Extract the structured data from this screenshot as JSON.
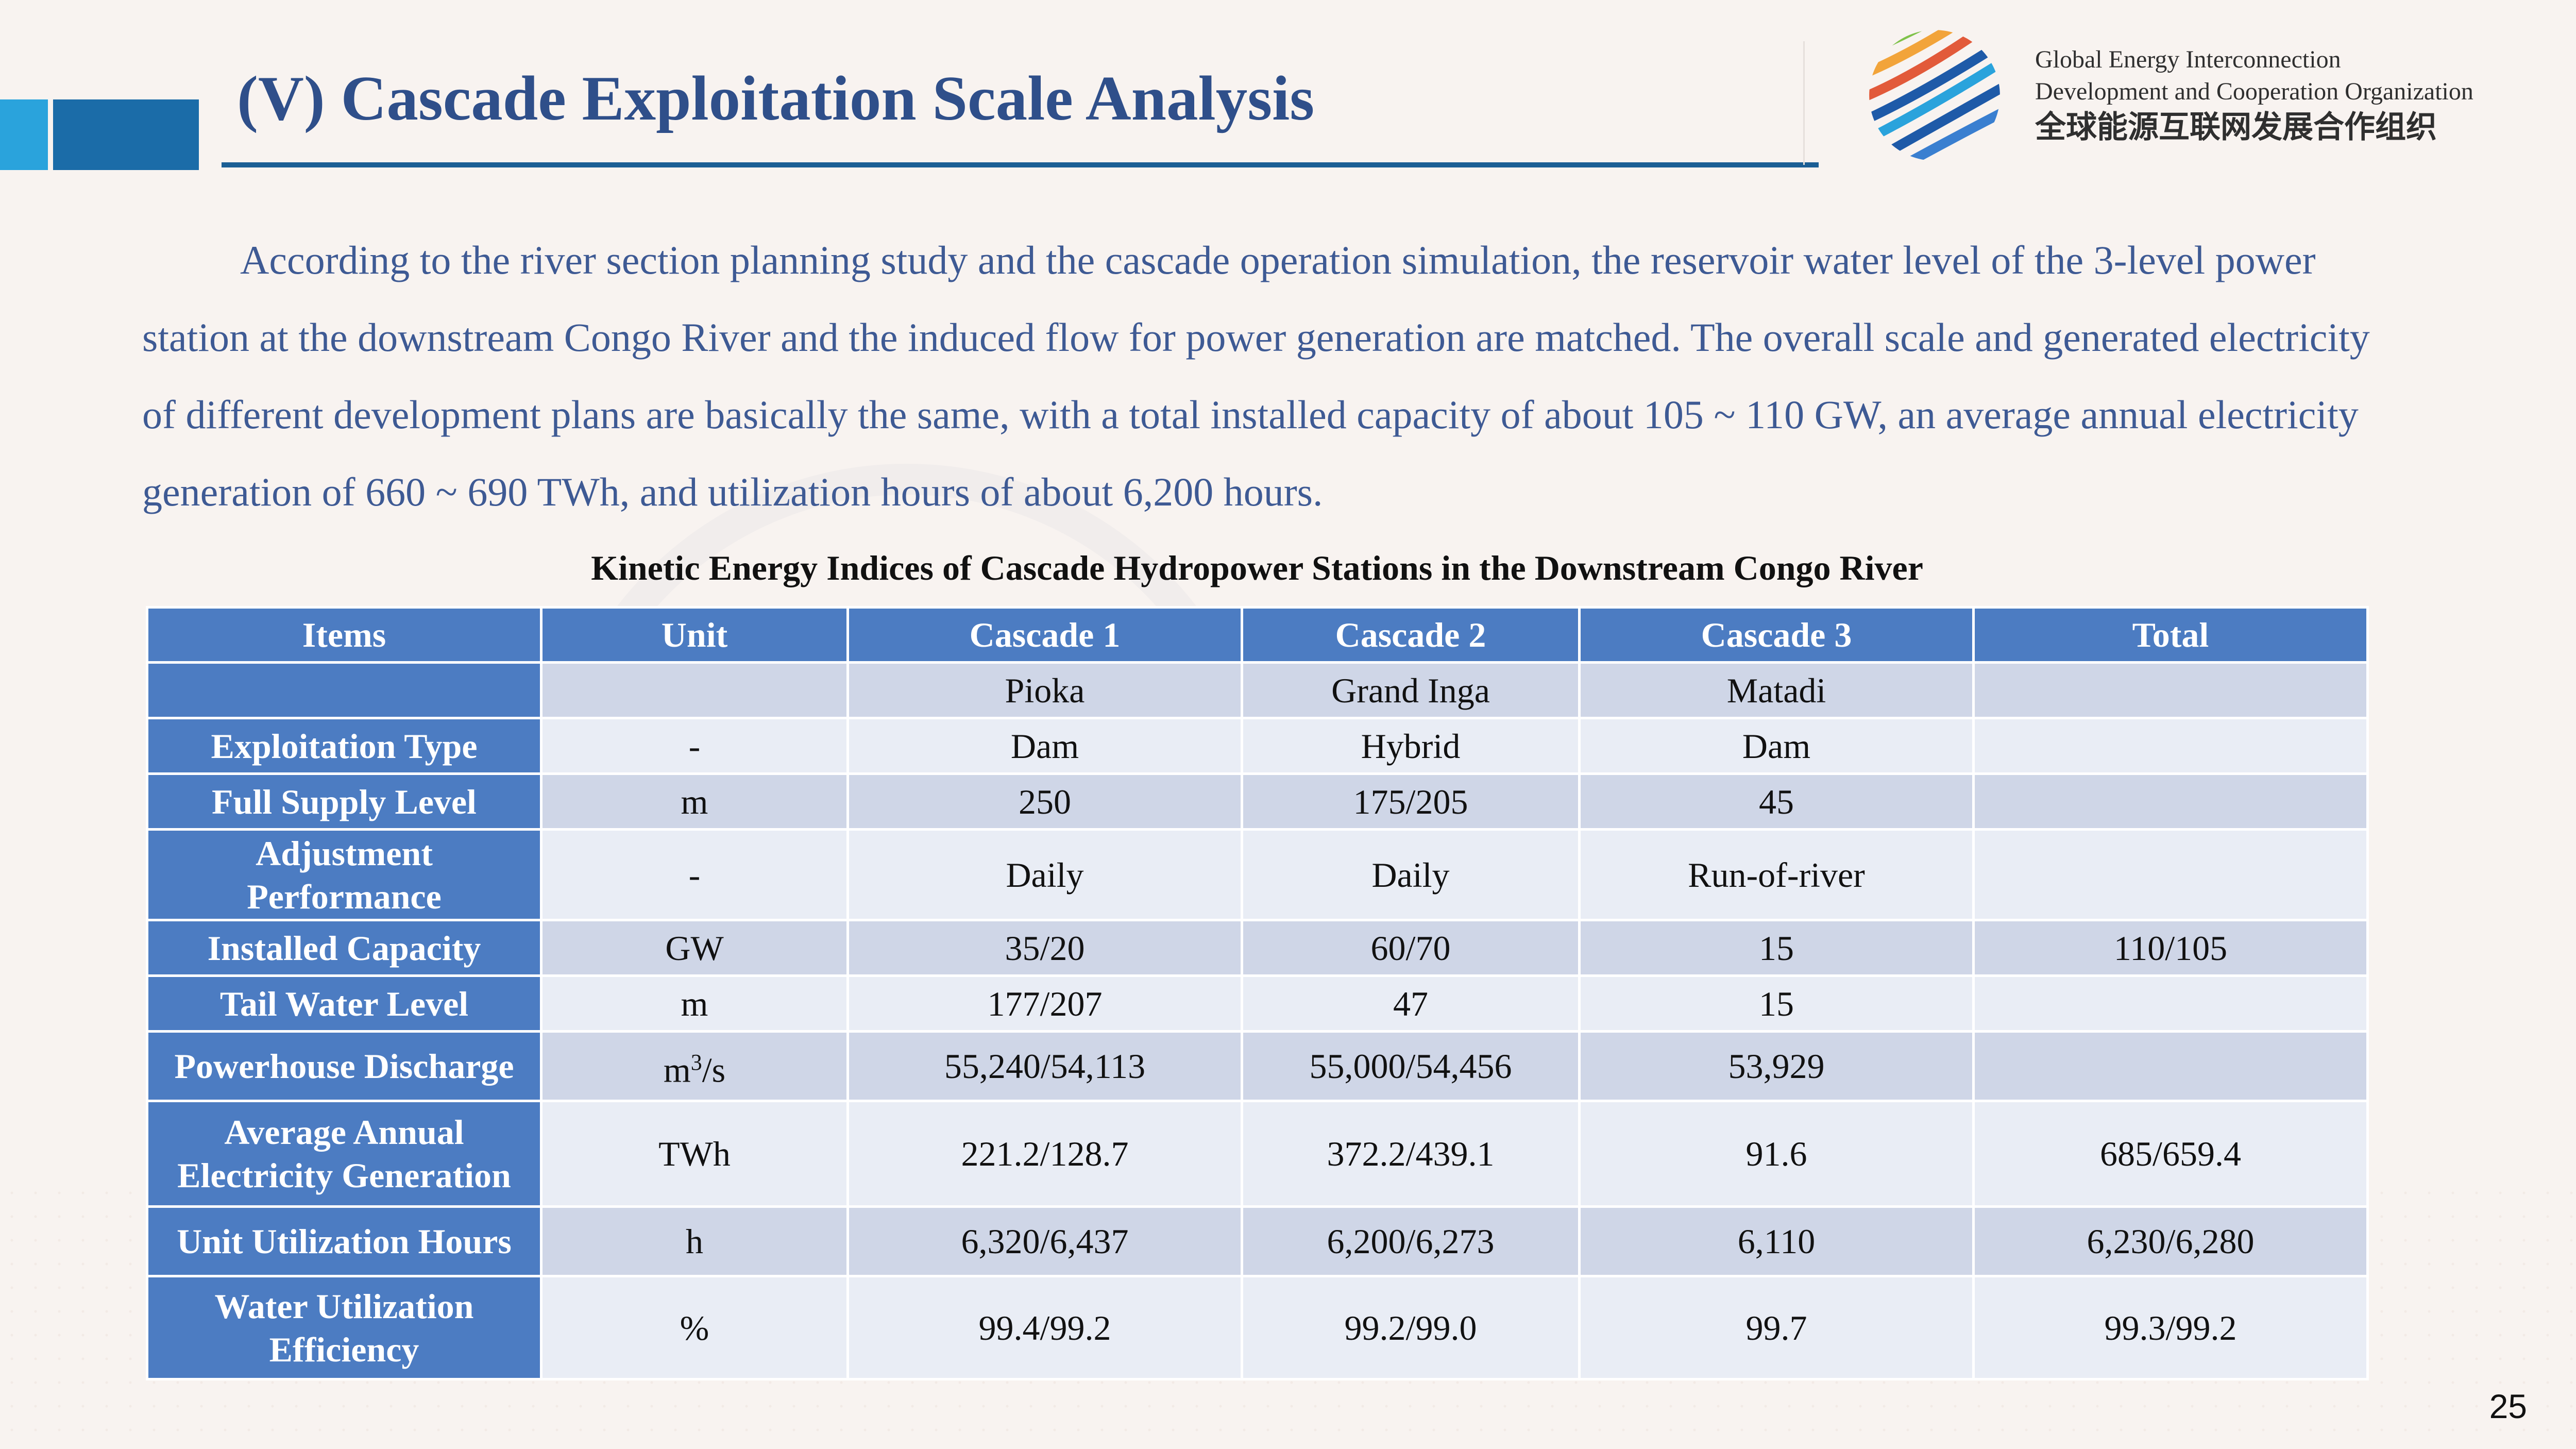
{
  "header": {
    "title": "(V) Cascade Exploitation Scale Analysis",
    "org_line1": "Global Energy Interconnection",
    "org_line2": "Development and Cooperation Organization",
    "org_line3": "全球能源互联网发展合作组织"
  },
  "body": {
    "paragraph": "According to the river section planning study and the cascade operation simulation, the reservoir water level of the 3-level power station at the downstream Congo River and the induced flow for power generation are matched. The overall scale and generated electricity of different development plans are basically the same, with a total installed capacity of about 105 ~ 110 GW, an average annual electricity generation of 660 ~ 690 TWh, and utilization hours of about 6,200 hours."
  },
  "table": {
    "caption": "Kinetic Energy Indices of Cascade Hydropower Stations in the Downstream Congo River",
    "headers": [
      "Items",
      "Unit",
      "Cascade 1",
      "Cascade 2",
      "Cascade 3",
      "Total"
    ],
    "rows": [
      {
        "item": "",
        "unit": "",
        "c1": "Pioka",
        "c2": "Grand Inga",
        "c3": "Matadi",
        "total": ""
      },
      {
        "item": "Exploitation Type",
        "unit": "-",
        "c1": "Dam",
        "c2": "Hybrid",
        "c3": "Dam",
        "total": ""
      },
      {
        "item": "Full Supply Level",
        "unit": "m",
        "c1": "250",
        "c2": "175/205",
        "c3": "45",
        "total": ""
      },
      {
        "item_l1": "Adjustment",
        "item_l2": "Performance",
        "unit": "-",
        "c1": "Daily",
        "c2": "Daily",
        "c3": "Run-of-river",
        "total": ""
      },
      {
        "item": "Installed Capacity",
        "unit": "GW",
        "c1": "35/20",
        "c2": "60/70",
        "c3": "15",
        "total": "110/105"
      },
      {
        "item": "Tail Water Level",
        "unit": "m",
        "c1": "177/207",
        "c2": "47",
        "c3": "15",
        "total": ""
      },
      {
        "item": "Powerhouse Discharge",
        "unit_base": "m",
        "unit_sup": "3",
        "unit_rest": "/s",
        "c1": "55,240/54,113",
        "c2": "55,000/54,456",
        "c3": "53,929",
        "total": ""
      },
      {
        "item_l1": "Average Annual",
        "item_l2": "Electricity Generation",
        "unit": "TWh",
        "c1": "221.2/128.7",
        "c2": "372.2/439.1",
        "c3": "91.6",
        "total": "685/659.4"
      },
      {
        "item": "Unit Utilization Hours",
        "unit": "h",
        "c1": "6,320/6,437",
        "c2": "6,200/6,273",
        "c3": "6,110",
        "total": "6,230/6,280"
      },
      {
        "item_l1": "Water Utilization",
        "item_l2": "Efficiency",
        "unit": "%",
        "c1": "99.4/99.2",
        "c2": "99.2/99.0",
        "c3": "99.7",
        "total": "99.3/99.2"
      }
    ]
  },
  "footer": {
    "page_number": "25"
  },
  "colors": {
    "accent_light_blue": "#2aa3dc",
    "accent_dark_blue": "#1b6ca8",
    "title_text": "#2f4f8a",
    "header_cell": "#4c7cc2",
    "row_dark": "#cfd6e7",
    "row_light": "#e9edf5"
  }
}
